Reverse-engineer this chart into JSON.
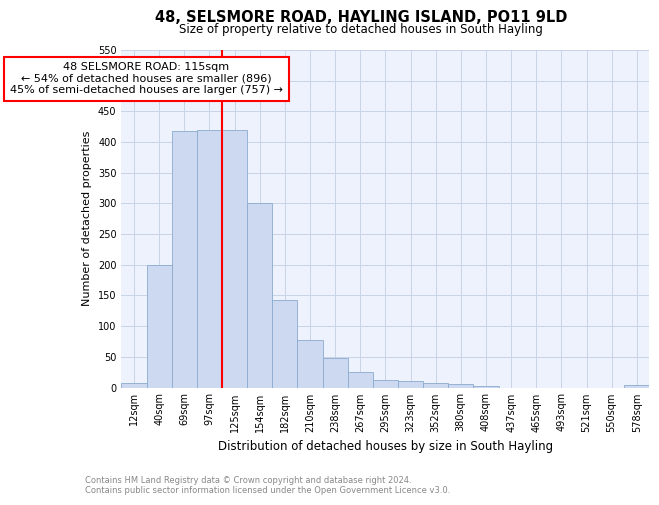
{
  "title": "48, SELSMORE ROAD, HAYLING ISLAND, PO11 9LD",
  "subtitle": "Size of property relative to detached houses in South Hayling",
  "xlabel": "Distribution of detached houses by size in South Hayling",
  "ylabel": "Number of detached properties",
  "categories": [
    "12sqm",
    "40sqm",
    "69sqm",
    "97sqm",
    "125sqm",
    "154sqm",
    "182sqm",
    "210sqm",
    "238sqm",
    "267sqm",
    "295sqm",
    "323sqm",
    "352sqm",
    "380sqm",
    "408sqm",
    "437sqm",
    "465sqm",
    "493sqm",
    "521sqm",
    "550sqm",
    "578sqm"
  ],
  "values": [
    8,
    200,
    418,
    420,
    420,
    300,
    143,
    78,
    48,
    25,
    12,
    10,
    8,
    5,
    2,
    0,
    0,
    0,
    0,
    0,
    4
  ],
  "bar_color": "#ccd9f0",
  "bar_edge_color": "#8aabcf",
  "bar_edge_width": 0.6,
  "red_line_index": 4,
  "annotation_text": "48 SELSMORE ROAD: 115sqm\n← 54% of detached houses are smaller (896)\n45% of semi-detached houses are larger (757) →",
  "annotation_box_color": "white",
  "annotation_box_edge_color": "red",
  "red_line_color": "red",
  "ylim": [
    0,
    550
  ],
  "yticks": [
    0,
    50,
    100,
    150,
    200,
    250,
    300,
    350,
    400,
    450,
    500,
    550
  ],
  "grid_color": "#c8d4e8",
  "footer_text": "Contains HM Land Registry data © Crown copyright and database right 2024.\nContains public sector information licensed under the Open Government Licence v3.0.",
  "title_fontsize": 10.5,
  "subtitle_fontsize": 8.5,
  "xlabel_fontsize": 8.5,
  "ylabel_fontsize": 8,
  "tick_fontsize": 7,
  "annotation_fontsize": 8,
  "footer_fontsize": 6,
  "background_color": "#eef2fc"
}
